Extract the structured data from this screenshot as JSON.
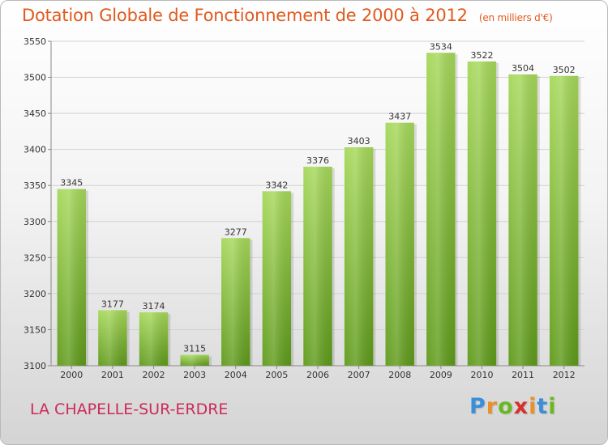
{
  "header": {
    "title": "Dotation Globale de Fonctionnement de 2000 à 2012",
    "unit": "(en milliers d'€)"
  },
  "footer": {
    "town": "LA CHAPELLE-SUR-ERDRE",
    "brand_letters": [
      "P",
      "r",
      "o",
      "x",
      "i",
      "t",
      "i"
    ],
    "brand_colors": [
      "#3a8fd8",
      "#e8902a",
      "#6ab820",
      "#d8302a",
      "#e8902a",
      "#3a8fd8",
      "#6ab820"
    ]
  },
  "chart_data": {
    "type": "bar",
    "categories": [
      "2000",
      "2001",
      "2002",
      "2003",
      "2004",
      "2005",
      "2006",
      "2007",
      "2008",
      "2009",
      "2010",
      "2011",
      "2012"
    ],
    "values": [
      3345,
      3177,
      3174,
      3115,
      3277,
      3342,
      3376,
      3403,
      3437,
      3534,
      3522,
      3504,
      3502
    ],
    "title": "Dotation Globale de Fonctionnement de 2000 à 2012",
    "subtitle": "(en milliers d'€)",
    "xlabel": "",
    "ylabel": "",
    "ylim": [
      3100,
      3550
    ],
    "yticks": [
      3100,
      3150,
      3200,
      3250,
      3300,
      3350,
      3400,
      3450,
      3500,
      3550
    ],
    "grid": true,
    "bar_color_top": "#a6d85a",
    "bar_color_bottom": "#5e9a1a"
  }
}
